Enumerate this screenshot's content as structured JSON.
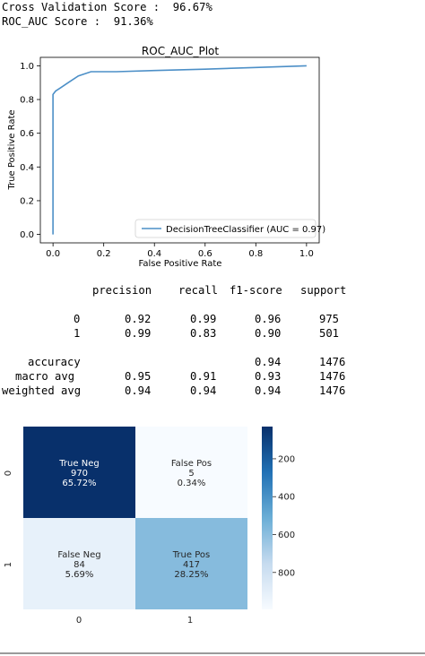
{
  "output": {
    "cv_line": "Cross Validation Score :  96.67%",
    "auc_line": "ROC_AUC Score :  91.36%"
  },
  "roc_chart": {
    "title": "ROC_AUC_Plot",
    "xlabel": "False Positive Rate",
    "ylabel": "True Positive Rate",
    "legend": "DecisionTreeClassifier (AUC = 0.97)",
    "line_color": "#4c8fc7"
  },
  "report": {
    "headers": [
      "precision",
      "recall",
      "f1-score",
      "support"
    ],
    "rows": [
      {
        "label": "0",
        "precision": "0.92",
        "recall": "0.99",
        "f1": "0.96",
        "support": "975"
      },
      {
        "label": "1",
        "precision": "0.99",
        "recall": "0.83",
        "f1": "0.90",
        "support": "501"
      },
      {
        "label": "accuracy",
        "precision": "",
        "recall": "",
        "f1": "0.94",
        "support": "1476"
      },
      {
        "label": "macro avg",
        "precision": "0.95",
        "recall": "0.91",
        "f1": "0.93",
        "support": "1476"
      },
      {
        "label": "weighted avg",
        "precision": "0.94",
        "recall": "0.94",
        "f1": "0.94",
        "support": "1476"
      }
    ]
  },
  "confusion_matrix": {
    "cells": [
      {
        "label": "True Neg",
        "count": "970",
        "pct": "65.72%"
      },
      {
        "label": "False Pos",
        "count": "5",
        "pct": "0.34%"
      },
      {
        "label": "False Neg",
        "count": "84",
        "pct": "5.69%"
      },
      {
        "label": "True Pos",
        "count": "417",
        "pct": "28.25%"
      }
    ],
    "x_ticks": [
      "0",
      "1"
    ],
    "y_ticks": [
      "0",
      "1"
    ],
    "colorbar_ticks": [
      "800",
      "600",
      "400",
      "200"
    ],
    "colormap": "Blues"
  },
  "chart_data": [
    {
      "type": "line",
      "title": "ROC_AUC_Plot",
      "xlabel": "False Positive Rate",
      "ylabel": "True Positive Rate",
      "xlim": [
        -0.05,
        1.05
      ],
      "ylim": [
        -0.05,
        1.05
      ],
      "x_ticks": [
        "0.0",
        "0.2",
        "0.4",
        "0.6",
        "0.8",
        "1.0"
      ],
      "y_ticks": [
        "0.0",
        "0.2",
        "0.4",
        "0.6",
        "0.8",
        "1.0"
      ],
      "legend_position": "lower right",
      "grid": false,
      "series": [
        {
          "name": "DecisionTreeClassifier (AUC = 0.97)",
          "x": [
            0.0,
            0.0,
            0.01,
            0.03,
            0.06,
            0.1,
            0.15,
            0.25,
            0.4,
            0.6,
            0.8,
            1.0
          ],
          "y": [
            0.0,
            0.83,
            0.85,
            0.87,
            0.9,
            0.94,
            0.965,
            0.965,
            0.972,
            0.98,
            0.99,
            1.0
          ]
        }
      ]
    },
    {
      "type": "heatmap",
      "x_categories": [
        "0",
        "1"
      ],
      "y_categories": [
        "0",
        "1"
      ],
      "values": [
        [
          970,
          5
        ],
        [
          84,
          417
        ]
      ],
      "annotations": [
        [
          "True Neg\n970\n65.72%",
          "False Pos\n5\n0.34%"
        ],
        [
          "False Neg\n84\n5.69%",
          "True Pos\n417\n28.25%"
        ]
      ],
      "colorbar_range": [
        5,
        970
      ],
      "colorbar_ticks": [
        200,
        400,
        600,
        800
      ]
    }
  ]
}
